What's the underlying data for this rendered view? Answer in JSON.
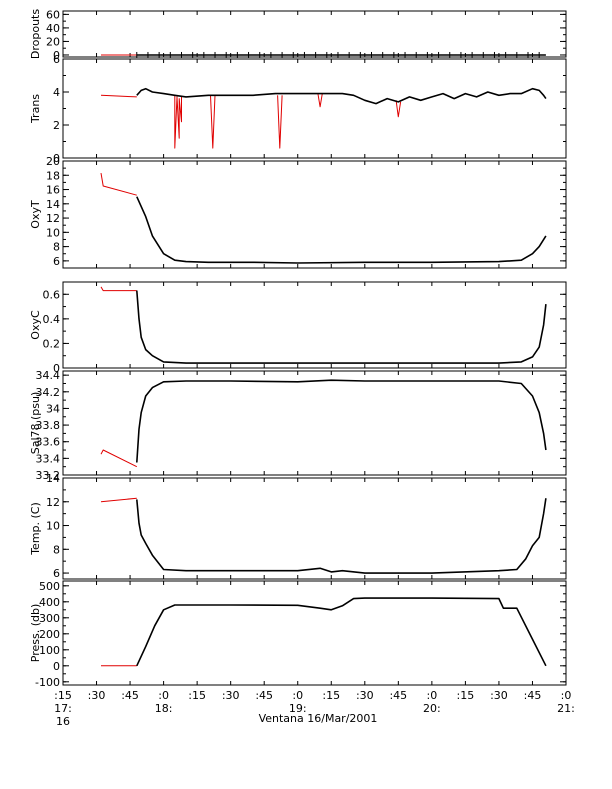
{
  "chart_data": {
    "type": "line",
    "xlabel": "Ventana 16/Mar/2001",
    "x_range": [
      "17:15",
      "21:00"
    ],
    "x_ticks": [
      {
        "t": "17:15",
        "minor": ":15",
        "major": "17:",
        "extra": "16"
      },
      {
        "t": "17:30",
        "minor": ":30"
      },
      {
        "t": "17:45",
        "minor": ":45"
      },
      {
        "t": "18:00",
        "minor": ":0",
        "major": "18:"
      },
      {
        "t": "18:15",
        "minor": ":15"
      },
      {
        "t": "18:30",
        "minor": ":30"
      },
      {
        "t": "18:45",
        "minor": ":45"
      },
      {
        "t": "19:00",
        "minor": ":0",
        "major": "19:"
      },
      {
        "t": "19:15",
        "minor": ":15"
      },
      {
        "t": "19:30",
        "minor": ":30"
      },
      {
        "t": "19:45",
        "minor": ":45"
      },
      {
        "t": "20:00",
        "minor": ":0",
        "major": "20:"
      },
      {
        "t": "20:15",
        "minor": ":15"
      },
      {
        "t": "20:30",
        "minor": ":30"
      },
      {
        "t": "20:45",
        "minor": ":45"
      },
      {
        "t": "21:00",
        "minor": ":0",
        "major": "21:"
      }
    ],
    "colors": {
      "raw": "#e00000",
      "smoothed": "#000000"
    },
    "panels": [
      {
        "ylabel": "Dropouts",
        "ylim": [
          -3,
          65
        ],
        "yticks": [
          0,
          20,
          40,
          60
        ],
        "series": [
          {
            "x": [
              "17:32",
              "17:48"
            ],
            "y": [
              0,
              0
            ],
            "color": "red"
          },
          {
            "x": [
              "17:48",
              "18:00",
              "18:30",
              "19:00",
              "19:30",
              "20:00",
              "20:30",
              "20:51"
            ],
            "y": [
              0,
              0,
              0,
              0,
              0,
              0,
              0,
              0
            ],
            "color": "black",
            "markers": true
          }
        ]
      },
      {
        "ylabel": "Trans",
        "ylim": [
          0,
          6
        ],
        "yticks": [
          0,
          2,
          4,
          6
        ],
        "series": [
          {
            "x": [
              "17:32",
              "17:48"
            ],
            "y": [
              3.8,
              3.7
            ],
            "color": "red"
          },
          {
            "x": [
              "18:05",
              "18:05",
              "18:06",
              "18:07",
              "18:07",
              "18:08",
              "18:08"
            ],
            "y": [
              3.8,
              0.6,
              3.7,
              1.2,
              3.6,
              2.2,
              3.7
            ],
            "color": "red"
          },
          {
            "x": [
              "18:21",
              "18:22",
              "18:23"
            ],
            "y": [
              3.8,
              0.6,
              3.8
            ],
            "color": "red"
          },
          {
            "x": [
              "18:51",
              "18:52",
              "18:53"
            ],
            "y": [
              3.8,
              0.6,
              3.8
            ],
            "color": "red"
          },
          {
            "x": [
              "19:09",
              "19:10",
              "19:11"
            ],
            "y": [
              3.9,
              3.1,
              3.9
            ],
            "color": "red"
          },
          {
            "x": [
              "19:44",
              "19:45",
              "19:46"
            ],
            "y": [
              3.5,
              2.5,
              3.4
            ],
            "color": "red"
          },
          {
            "x": [
              "17:48",
              "17:50",
              "17:52",
              "17:55",
              "18:00",
              "18:05",
              "18:10",
              "18:20",
              "18:30",
              "18:40",
              "18:50",
              "19:00",
              "19:10",
              "19:20",
              "19:25",
              "19:30",
              "19:35",
              "19:40",
              "19:45",
              "19:50",
              "19:55",
              "20:00",
              "20:05",
              "20:10",
              "20:15",
              "20:20",
              "20:25",
              "20:30",
              "20:35",
              "20:40",
              "20:45",
              "20:48",
              "20:50",
              "20:51"
            ],
            "y": [
              3.8,
              4.1,
              4.2,
              4.0,
              3.9,
              3.8,
              3.7,
              3.8,
              3.8,
              3.8,
              3.9,
              3.9,
              3.9,
              3.9,
              3.8,
              3.5,
              3.3,
              3.6,
              3.4,
              3.7,
              3.5,
              3.7,
              3.9,
              3.6,
              3.9,
              3.7,
              4.0,
              3.8,
              3.9,
              3.9,
              4.2,
              4.1,
              3.8,
              3.6
            ],
            "color": "black"
          }
        ]
      },
      {
        "ylabel": "OxyT",
        "ylim": [
          5,
          20
        ],
        "yticks": [
          6,
          8,
          10,
          12,
          14,
          16,
          18,
          20
        ],
        "series": [
          {
            "x": [
              "17:32",
              "17:33",
              "17:48"
            ],
            "y": [
              18.3,
              16.5,
              15.2
            ],
            "color": "red"
          },
          {
            "x": [
              "17:48",
              "17:52",
              "17:55",
              "18:00",
              "18:05",
              "18:10",
              "18:20",
              "18:40",
              "19:00",
              "19:30",
              "20:00",
              "20:30",
              "20:40",
              "20:45",
              "20:48",
              "20:51"
            ],
            "y": [
              15.0,
              12.2,
              9.5,
              7.0,
              6.1,
              5.9,
              5.8,
              5.8,
              5.7,
              5.8,
              5.8,
              5.9,
              6.1,
              7.0,
              8.0,
              9.5
            ],
            "color": "black"
          }
        ]
      },
      {
        "ylabel": "OxyC",
        "ylim": [
          0,
          0.7
        ],
        "yticks": [
          0.0,
          0.2,
          0.4,
          0.6
        ],
        "series": [
          {
            "x": [
              "17:32",
              "17:33",
              "17:48"
            ],
            "y": [
              0.66,
              0.63,
              0.63
            ],
            "color": "red"
          },
          {
            "x": [
              "17:48",
              "17:49",
              "17:50",
              "17:52",
              "17:55",
              "18:00",
              "18:10",
              "18:30",
              "19:00",
              "19:30",
              "20:00",
              "20:30",
              "20:40",
              "20:45",
              "20:48",
              "20:50",
              "20:51"
            ],
            "y": [
              0.63,
              0.4,
              0.25,
              0.15,
              0.1,
              0.05,
              0.04,
              0.04,
              0.04,
              0.04,
              0.04,
              0.04,
              0.05,
              0.09,
              0.17,
              0.35,
              0.52
            ],
            "color": "black"
          }
        ]
      },
      {
        "ylabel": "Sal78 (psu)",
        "ylim": [
          33.2,
          34.45
        ],
        "yticks": [
          33.2,
          33.4,
          33.6,
          33.8,
          34.0,
          34.2,
          34.4
        ],
        "series": [
          {
            "x": [
              "17:32",
              "17:33",
              "17:48"
            ],
            "y": [
              33.45,
              33.5,
              33.3
            ],
            "color": "red"
          },
          {
            "x": [
              "17:48",
              "17:49",
              "17:50",
              "17:52",
              "17:55",
              "18:00",
              "18:10",
              "18:30",
              "19:00",
              "19:15",
              "19:30",
              "20:00",
              "20:30",
              "20:40",
              "20:45",
              "20:48",
              "20:50",
              "20:51"
            ],
            "y": [
              33.35,
              33.75,
              33.95,
              34.15,
              34.25,
              34.32,
              34.33,
              34.33,
              34.32,
              34.34,
              34.33,
              34.33,
              34.33,
              34.3,
              34.15,
              33.95,
              33.7,
              33.5
            ],
            "color": "black"
          }
        ]
      },
      {
        "ylabel": "Temp. (C)",
        "ylim": [
          5.5,
          14
        ],
        "yticks": [
          6,
          8,
          10,
          12,
          14
        ],
        "series": [
          {
            "x": [
              "17:32",
              "17:48"
            ],
            "y": [
              12.0,
              12.3
            ],
            "color": "red"
          },
          {
            "x": [
              "17:48",
              "17:49",
              "17:50",
              "17:52",
              "17:55",
              "18:00",
              "18:10",
              "18:30",
              "19:00",
              "19:10",
              "19:15",
              "19:20",
              "19:30",
              "20:00",
              "20:30",
              "20:38",
              "20:42",
              "20:45",
              "20:48",
              "20:50",
              "20:51"
            ],
            "y": [
              12.2,
              10.2,
              9.2,
              8.5,
              7.5,
              6.3,
              6.2,
              6.2,
              6.2,
              6.4,
              6.1,
              6.2,
              6.0,
              6.0,
              6.2,
              6.3,
              7.2,
              8.3,
              9.0,
              11.0,
              12.3
            ],
            "color": "black"
          }
        ]
      },
      {
        "ylabel": "Press. (db)",
        "ylim": [
          -120,
          530
        ],
        "yticks": [
          -100,
          0,
          100,
          200,
          300,
          400,
          500
        ],
        "series": [
          {
            "x": [
              "17:32",
              "17:48"
            ],
            "y": [
              0,
              0
            ],
            "color": "red"
          },
          {
            "x": [
              "17:48",
              "17:52",
              "17:56",
              "18:00",
              "18:05",
              "18:15",
              "18:30",
              "19:00",
              "19:10",
              "19:15",
              "19:20",
              "19:25",
              "19:30",
              "20:00",
              "20:30",
              "20:32",
              "20:38",
              "20:51"
            ],
            "y": [
              0,
              120,
              250,
              350,
              380,
              380,
              380,
              378,
              360,
              350,
              375,
              420,
              423,
              423,
              420,
              360,
              360,
              0
            ],
            "color": "black"
          }
        ]
      }
    ]
  }
}
